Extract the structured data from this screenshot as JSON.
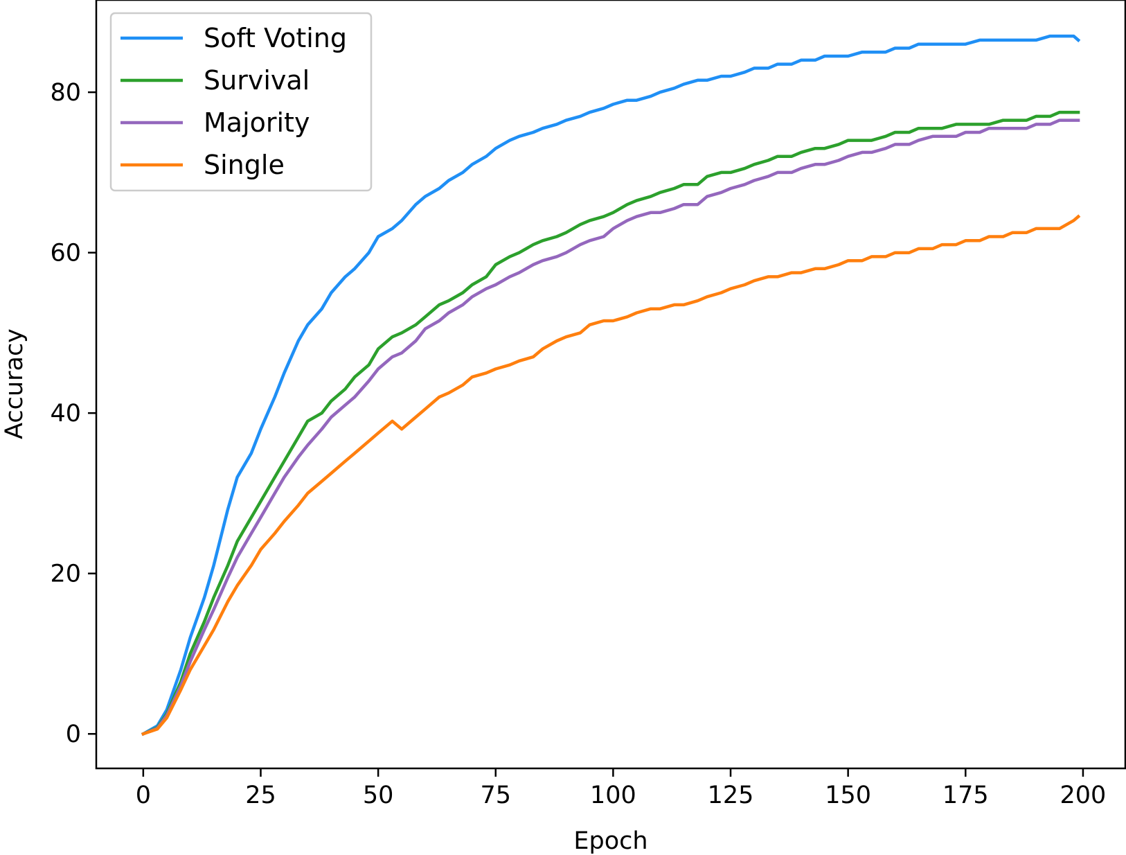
{
  "chart_data": {
    "type": "line",
    "title": "",
    "xlabel": "Epoch",
    "ylabel": "Accuracy",
    "xlim": [
      -10,
      209
    ],
    "ylim": [
      -4.3,
      91.5
    ],
    "xticks": [
      0,
      25,
      50,
      75,
      100,
      125,
      150,
      175,
      200
    ],
    "yticks": [
      0,
      20,
      40,
      60,
      80
    ],
    "grid": false,
    "legend_position": "top-left",
    "series": [
      {
        "name": "Soft Voting",
        "color": "#1f8ff5",
        "points": [
          [
            0,
            0
          ],
          [
            3,
            1
          ],
          [
            5,
            3
          ],
          [
            8,
            8
          ],
          [
            10,
            12
          ],
          [
            13,
            17
          ],
          [
            15,
            21
          ],
          [
            18,
            28
          ],
          [
            20,
            32
          ],
          [
            23,
            35
          ],
          [
            25,
            38
          ],
          [
            28,
            42
          ],
          [
            30,
            45
          ],
          [
            33,
            49
          ],
          [
            35,
            51
          ],
          [
            38,
            53
          ],
          [
            40,
            55
          ],
          [
            43,
            57
          ],
          [
            45,
            58
          ],
          [
            48,
            60
          ],
          [
            50,
            62
          ],
          [
            53,
            63
          ],
          [
            55,
            64
          ],
          [
            58,
            66
          ],
          [
            60,
            67
          ],
          [
            63,
            68
          ],
          [
            65,
            69
          ],
          [
            68,
            70
          ],
          [
            70,
            71
          ],
          [
            73,
            72
          ],
          [
            75,
            73
          ],
          [
            78,
            74
          ],
          [
            80,
            74.5
          ],
          [
            83,
            75
          ],
          [
            85,
            75.5
          ],
          [
            88,
            76
          ],
          [
            90,
            76.5
          ],
          [
            93,
            77
          ],
          [
            95,
            77.5
          ],
          [
            98,
            78
          ],
          [
            100,
            78.5
          ],
          [
            103,
            79
          ],
          [
            105,
            79
          ],
          [
            108,
            79.5
          ],
          [
            110,
            80
          ],
          [
            113,
            80.5
          ],
          [
            115,
            81
          ],
          [
            118,
            81.5
          ],
          [
            120,
            81.5
          ],
          [
            123,
            82
          ],
          [
            125,
            82
          ],
          [
            128,
            82.5
          ],
          [
            130,
            83
          ],
          [
            133,
            83
          ],
          [
            135,
            83.5
          ],
          [
            138,
            83.5
          ],
          [
            140,
            84
          ],
          [
            143,
            84
          ],
          [
            145,
            84.5
          ],
          [
            148,
            84.5
          ],
          [
            150,
            84.5
          ],
          [
            153,
            85
          ],
          [
            155,
            85
          ],
          [
            158,
            85
          ],
          [
            160,
            85.5
          ],
          [
            163,
            85.5
          ],
          [
            165,
            86
          ],
          [
            168,
            86
          ],
          [
            170,
            86
          ],
          [
            173,
            86
          ],
          [
            175,
            86
          ],
          [
            178,
            86.5
          ],
          [
            180,
            86.5
          ],
          [
            183,
            86.5
          ],
          [
            185,
            86.5
          ],
          [
            188,
            86.5
          ],
          [
            190,
            86.5
          ],
          [
            193,
            87
          ],
          [
            195,
            87
          ],
          [
            198,
            87
          ],
          [
            199,
            86.5
          ]
        ]
      },
      {
        "name": "Survival",
        "color": "#2ca02c",
        "points": [
          [
            0,
            0
          ],
          [
            3,
            0.8
          ],
          [
            5,
            2.5
          ],
          [
            8,
            6.5
          ],
          [
            10,
            10
          ],
          [
            13,
            14
          ],
          [
            15,
            17
          ],
          [
            18,
            21
          ],
          [
            20,
            24
          ],
          [
            23,
            27
          ],
          [
            25,
            29
          ],
          [
            28,
            32
          ],
          [
            30,
            34
          ],
          [
            33,
            37
          ],
          [
            35,
            39
          ],
          [
            38,
            40
          ],
          [
            40,
            41.5
          ],
          [
            43,
            43
          ],
          [
            45,
            44.5
          ],
          [
            48,
            46
          ],
          [
            50,
            48
          ],
          [
            53,
            49.5
          ],
          [
            55,
            50
          ],
          [
            58,
            51
          ],
          [
            60,
            52
          ],
          [
            63,
            53.5
          ],
          [
            65,
            54
          ],
          [
            68,
            55
          ],
          [
            70,
            56
          ],
          [
            73,
            57
          ],
          [
            75,
            58.5
          ],
          [
            78,
            59.5
          ],
          [
            80,
            60
          ],
          [
            83,
            61
          ],
          [
            85,
            61.5
          ],
          [
            88,
            62
          ],
          [
            90,
            62.5
          ],
          [
            93,
            63.5
          ],
          [
            95,
            64
          ],
          [
            98,
            64.5
          ],
          [
            100,
            65
          ],
          [
            103,
            66
          ],
          [
            105,
            66.5
          ],
          [
            108,
            67
          ],
          [
            110,
            67.5
          ],
          [
            113,
            68
          ],
          [
            115,
            68.5
          ],
          [
            118,
            68.5
          ],
          [
            120,
            69.5
          ],
          [
            123,
            70
          ],
          [
            125,
            70
          ],
          [
            128,
            70.5
          ],
          [
            130,
            71
          ],
          [
            133,
            71.5
          ],
          [
            135,
            72
          ],
          [
            138,
            72
          ],
          [
            140,
            72.5
          ],
          [
            143,
            73
          ],
          [
            145,
            73
          ],
          [
            148,
            73.5
          ],
          [
            150,
            74
          ],
          [
            153,
            74
          ],
          [
            155,
            74
          ],
          [
            158,
            74.5
          ],
          [
            160,
            75
          ],
          [
            163,
            75
          ],
          [
            165,
            75.5
          ],
          [
            168,
            75.5
          ],
          [
            170,
            75.5
          ],
          [
            173,
            76
          ],
          [
            175,
            76
          ],
          [
            178,
            76
          ],
          [
            180,
            76
          ],
          [
            183,
            76.5
          ],
          [
            185,
            76.5
          ],
          [
            188,
            76.5
          ],
          [
            190,
            77
          ],
          [
            193,
            77
          ],
          [
            195,
            77.5
          ],
          [
            198,
            77.5
          ],
          [
            199,
            77.5
          ]
        ]
      },
      {
        "name": "Majority",
        "color": "#9467bd",
        "points": [
          [
            0,
            0
          ],
          [
            3,
            0.7
          ],
          [
            5,
            2.3
          ],
          [
            8,
            6
          ],
          [
            10,
            9
          ],
          [
            13,
            13
          ],
          [
            15,
            15.5
          ],
          [
            18,
            19.5
          ],
          [
            20,
            22
          ],
          [
            23,
            25
          ],
          [
            25,
            27
          ],
          [
            28,
            30
          ],
          [
            30,
            32
          ],
          [
            33,
            34.5
          ],
          [
            35,
            36
          ],
          [
            38,
            38
          ],
          [
            40,
            39.5
          ],
          [
            43,
            41
          ],
          [
            45,
            42
          ],
          [
            48,
            44
          ],
          [
            50,
            45.5
          ],
          [
            53,
            47
          ],
          [
            55,
            47.5
          ],
          [
            58,
            49
          ],
          [
            60,
            50.5
          ],
          [
            63,
            51.5
          ],
          [
            65,
            52.5
          ],
          [
            68,
            53.5
          ],
          [
            70,
            54.5
          ],
          [
            73,
            55.5
          ],
          [
            75,
            56
          ],
          [
            78,
            57
          ],
          [
            80,
            57.5
          ],
          [
            83,
            58.5
          ],
          [
            85,
            59
          ],
          [
            88,
            59.5
          ],
          [
            90,
            60
          ],
          [
            93,
            61
          ],
          [
            95,
            61.5
          ],
          [
            98,
            62
          ],
          [
            100,
            63
          ],
          [
            103,
            64
          ],
          [
            105,
            64.5
          ],
          [
            108,
            65
          ],
          [
            110,
            65
          ],
          [
            113,
            65.5
          ],
          [
            115,
            66
          ],
          [
            118,
            66
          ],
          [
            120,
            67
          ],
          [
            123,
            67.5
          ],
          [
            125,
            68
          ],
          [
            128,
            68.5
          ],
          [
            130,
            69
          ],
          [
            133,
            69.5
          ],
          [
            135,
            70
          ],
          [
            138,
            70
          ],
          [
            140,
            70.5
          ],
          [
            143,
            71
          ],
          [
            145,
            71
          ],
          [
            148,
            71.5
          ],
          [
            150,
            72
          ],
          [
            153,
            72.5
          ],
          [
            155,
            72.5
          ],
          [
            158,
            73
          ],
          [
            160,
            73.5
          ],
          [
            163,
            73.5
          ],
          [
            165,
            74
          ],
          [
            168,
            74.5
          ],
          [
            170,
            74.5
          ],
          [
            173,
            74.5
          ],
          [
            175,
            75
          ],
          [
            178,
            75
          ],
          [
            180,
            75.5
          ],
          [
            183,
            75.5
          ],
          [
            185,
            75.5
          ],
          [
            188,
            75.5
          ],
          [
            190,
            76
          ],
          [
            193,
            76
          ],
          [
            195,
            76.5
          ],
          [
            198,
            76.5
          ],
          [
            199,
            76.5
          ]
        ]
      },
      {
        "name": "Single",
        "color": "#ff7f0e",
        "points": [
          [
            0,
            0
          ],
          [
            3,
            0.6
          ],
          [
            5,
            2
          ],
          [
            8,
            5.5
          ],
          [
            10,
            8
          ],
          [
            13,
            11
          ],
          [
            15,
            13
          ],
          [
            18,
            16.5
          ],
          [
            20,
            18.5
          ],
          [
            23,
            21
          ],
          [
            25,
            23
          ],
          [
            28,
            25
          ],
          [
            30,
            26.5
          ],
          [
            33,
            28.5
          ],
          [
            35,
            30
          ],
          [
            38,
            31.5
          ],
          [
            40,
            32.5
          ],
          [
            43,
            34
          ],
          [
            45,
            35
          ],
          [
            48,
            36.5
          ],
          [
            50,
            37.5
          ],
          [
            53,
            39
          ],
          [
            55,
            38
          ],
          [
            58,
            39.5
          ],
          [
            60,
            40.5
          ],
          [
            63,
            42
          ],
          [
            65,
            42.5
          ],
          [
            68,
            43.5
          ],
          [
            70,
            44.5
          ],
          [
            73,
            45
          ],
          [
            75,
            45.5
          ],
          [
            78,
            46
          ],
          [
            80,
            46.5
          ],
          [
            83,
            47
          ],
          [
            85,
            48
          ],
          [
            88,
            49
          ],
          [
            90,
            49.5
          ],
          [
            93,
            50
          ],
          [
            95,
            51
          ],
          [
            98,
            51.5
          ],
          [
            100,
            51.5
          ],
          [
            103,
            52
          ],
          [
            105,
            52.5
          ],
          [
            108,
            53
          ],
          [
            110,
            53
          ],
          [
            113,
            53.5
          ],
          [
            115,
            53.5
          ],
          [
            118,
            54
          ],
          [
            120,
            54.5
          ],
          [
            123,
            55
          ],
          [
            125,
            55.5
          ],
          [
            128,
            56
          ],
          [
            130,
            56.5
          ],
          [
            133,
            57
          ],
          [
            135,
            57
          ],
          [
            138,
            57.5
          ],
          [
            140,
            57.5
          ],
          [
            143,
            58
          ],
          [
            145,
            58
          ],
          [
            148,
            58.5
          ],
          [
            150,
            59
          ],
          [
            153,
            59
          ],
          [
            155,
            59.5
          ],
          [
            158,
            59.5
          ],
          [
            160,
            60
          ],
          [
            163,
            60
          ],
          [
            165,
            60.5
          ],
          [
            168,
            60.5
          ],
          [
            170,
            61
          ],
          [
            173,
            61
          ],
          [
            175,
            61.5
          ],
          [
            178,
            61.5
          ],
          [
            180,
            62
          ],
          [
            183,
            62
          ],
          [
            185,
            62.5
          ],
          [
            188,
            62.5
          ],
          [
            190,
            63
          ],
          [
            193,
            63
          ],
          [
            195,
            63
          ],
          [
            198,
            64
          ],
          [
            199,
            64.5
          ]
        ]
      }
    ]
  }
}
